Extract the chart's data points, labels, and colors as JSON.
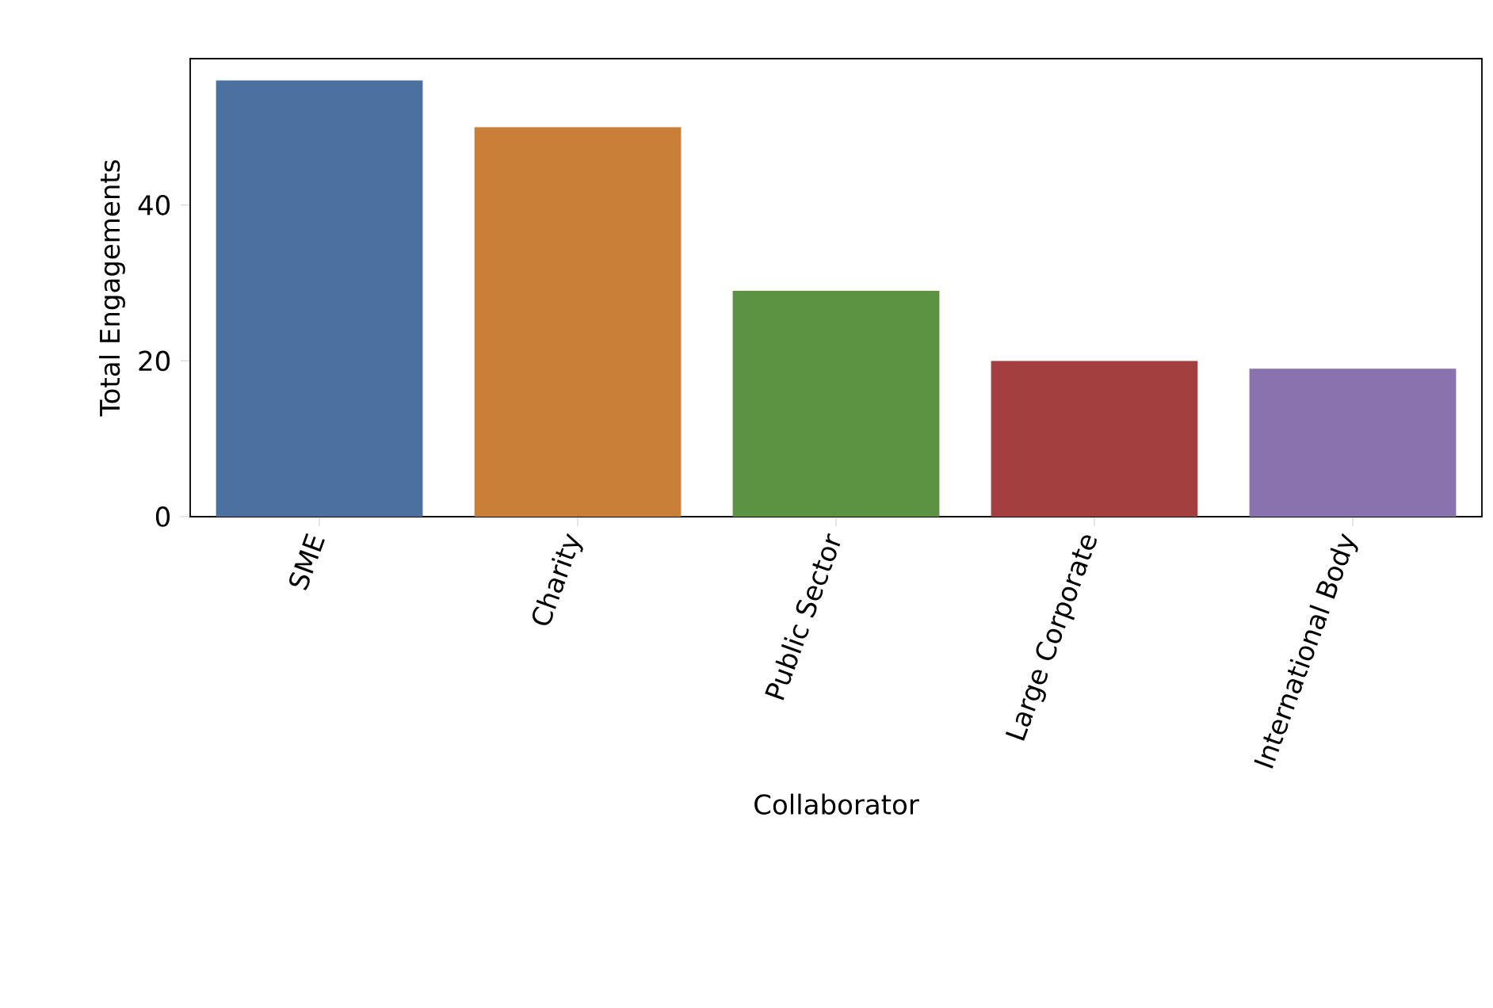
{
  "chart_data": {
    "type": "bar",
    "xlabel": "Collaborator",
    "ylabel": "Total Engagements",
    "categories": [
      "SME",
      "Charity",
      "Public Sector",
      "Large Corporate",
      "International Body"
    ],
    "values": [
      56,
      50,
      29,
      20,
      19
    ],
    "colors": [
      "#4a71a0",
      "#c97f37",
      "#5b9343",
      "#a43f3f",
      "#8a72ae"
    ],
    "ylim": [
      0,
      58.8
    ],
    "yticks": [
      0,
      20,
      40
    ]
  }
}
